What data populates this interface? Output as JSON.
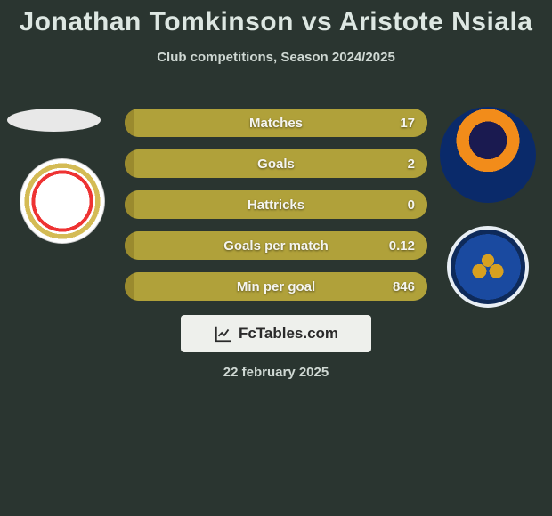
{
  "title": {
    "player1": "Jonathan Tomkinson",
    "vs": "vs",
    "player2": "Aristote Nsiala"
  },
  "subtitle": "Club competitions, Season 2024/2025",
  "colors": {
    "bar_left": "#9a8a2e",
    "bar_right": "#b0a13a",
    "bg": "#2a3530"
  },
  "stats": [
    {
      "label": "Matches",
      "left_value": "",
      "right_value": "17",
      "left_pct": 0,
      "right_pct": 100
    },
    {
      "label": "Goals",
      "left_value": "",
      "right_value": "2",
      "left_pct": 0,
      "right_pct": 100
    },
    {
      "label": "Hattricks",
      "left_value": "",
      "right_value": "0",
      "left_pct": 0,
      "right_pct": 100
    },
    {
      "label": "Goals per match",
      "left_value": "",
      "right_value": "0.12",
      "left_pct": 0,
      "right_pct": 100
    },
    {
      "label": "Min per goal",
      "left_value": "",
      "right_value": "846",
      "left_pct": 0,
      "right_pct": 100
    }
  ],
  "brand": "FcTables.com",
  "date": "22 february 2025"
}
